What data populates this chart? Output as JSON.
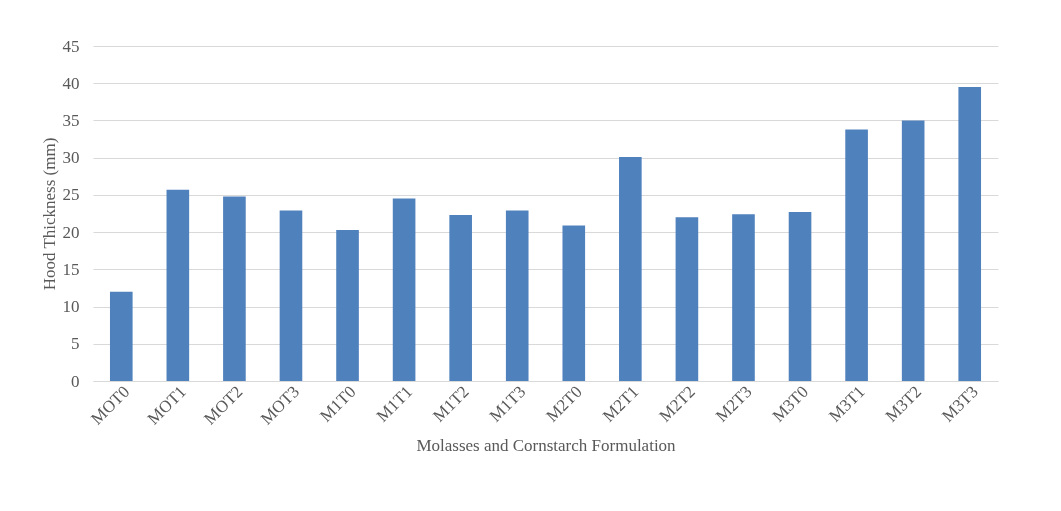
{
  "chart_data": {
    "type": "bar",
    "xlabel": "Molasses and Cornstarch Formulation",
    "ylabel": "Hood Thickness (mm)",
    "categories": [
      "MOT0",
      "MOT1",
      "MOT2",
      "MOT3",
      "M1T0",
      "M1T1",
      "M1T2",
      "M1T3",
      "M2T0",
      "M2T1",
      "M2T2",
      "M2T3",
      "M3T0",
      "M3T1",
      "M3T2",
      "M3T3"
    ],
    "values": [
      12,
      25.7,
      24.8,
      22.9,
      20.3,
      24.5,
      22.3,
      22.9,
      20.9,
      30.1,
      22,
      22.4,
      22.7,
      33.8,
      35,
      39.5
    ],
    "color": "#4f81bd",
    "ylim": [
      0,
      45
    ],
    "yticks": [
      0,
      5,
      10,
      15,
      20,
      25,
      30,
      35,
      40,
      45
    ],
    "grid": "y"
  }
}
